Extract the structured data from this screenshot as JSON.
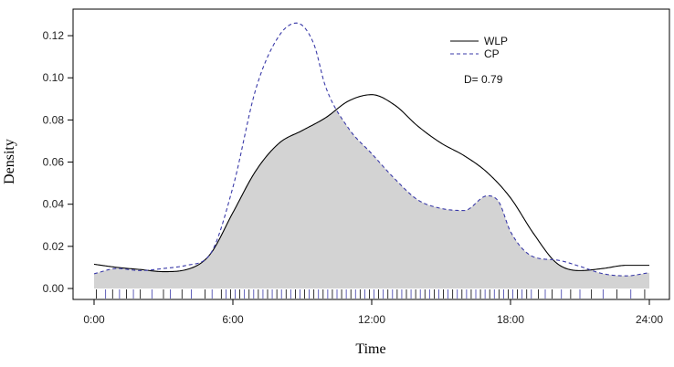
{
  "chart_data": {
    "type": "area",
    "title": "",
    "xlabel": "Time",
    "ylabel": "Density",
    "xlim": [
      0,
      24
    ],
    "ylim": [
      0,
      0.13
    ],
    "x_ticks": [
      0,
      6,
      12,
      18,
      24
    ],
    "x_tick_labels": [
      "0:00",
      "6:00",
      "12:00",
      "18:00",
      "24:00"
    ],
    "y_ticks": [
      0.0,
      0.02,
      0.04,
      0.06,
      0.08,
      0.1,
      0.12
    ],
    "y_tick_labels": [
      "0.00",
      "0.02",
      "0.04",
      "0.06",
      "0.08",
      "0.10",
      "0.12"
    ],
    "grid": false,
    "legend_position": "top-right",
    "annotation": "D= 0.79",
    "overlap_fill_color": "#d3d3d3",
    "series": [
      {
        "name": "WLP",
        "line_style": "solid",
        "color": "#000000",
        "x": [
          0,
          1,
          2,
          3,
          4,
          5,
          6,
          7,
          8,
          9,
          10,
          11,
          12,
          13,
          14,
          15,
          16,
          17,
          18,
          19,
          20,
          21,
          22,
          23,
          24
        ],
        "values": [
          0.0115,
          0.01,
          0.009,
          0.008,
          0.009,
          0.016,
          0.036,
          0.056,
          0.069,
          0.075,
          0.081,
          0.089,
          0.092,
          0.087,
          0.077,
          0.069,
          0.063,
          0.055,
          0.043,
          0.026,
          0.012,
          0.0085,
          0.0095,
          0.011,
          0.011
        ]
      },
      {
        "name": "CP",
        "line_style": "dashed",
        "color": "#3a3aa8",
        "x": [
          0,
          1,
          2,
          3,
          4,
          5,
          6,
          7,
          8,
          8.75,
          9.5,
          10,
          11,
          12,
          13,
          14,
          15,
          16,
          17,
          17.5,
          18,
          19,
          20,
          21,
          22,
          23,
          24
        ],
        "values": [
          0.007,
          0.0095,
          0.0085,
          0.0095,
          0.011,
          0.016,
          0.048,
          0.095,
          0.12,
          0.126,
          0.116,
          0.096,
          0.076,
          0.064,
          0.052,
          0.042,
          0.038,
          0.037,
          0.044,
          0.041,
          0.027,
          0.015,
          0.0135,
          0.0105,
          0.007,
          0.006,
          0.0075
        ]
      }
    ],
    "rug_x": [
      0.1,
      0.5,
      0.8,
      1.1,
      1.4,
      1.7,
      2.0,
      2.5,
      3.0,
      3.3,
      3.8,
      4.2,
      4.8,
      5.1,
      5.5,
      5.7,
      5.9,
      6.1,
      6.3,
      6.5,
      6.7,
      6.9,
      7.1,
      7.3,
      7.5,
      7.7,
      7.9,
      8.1,
      8.3,
      8.5,
      8.7,
      8.9,
      9.1,
      9.3,
      9.5,
      9.7,
      9.9,
      10.1,
      10.3,
      10.5,
      10.7,
      10.9,
      11.1,
      11.3,
      11.5,
      11.7,
      11.9,
      12.1,
      12.3,
      12.5,
      12.7,
      12.9,
      13.1,
      13.3,
      13.5,
      13.7,
      13.9,
      14.1,
      14.3,
      14.5,
      14.7,
      14.9,
      15.1,
      15.3,
      15.5,
      15.7,
      15.9,
      16.1,
      16.3,
      16.5,
      16.7,
      16.9,
      17.1,
      17.3,
      17.5,
      17.7,
      17.9,
      18.1,
      18.3,
      18.5,
      18.7,
      18.9,
      19.2,
      19.5,
      19.8,
      20.2,
      20.6,
      21.0,
      21.5,
      22.0,
      22.6,
      23.2,
      23.8
    ]
  }
}
